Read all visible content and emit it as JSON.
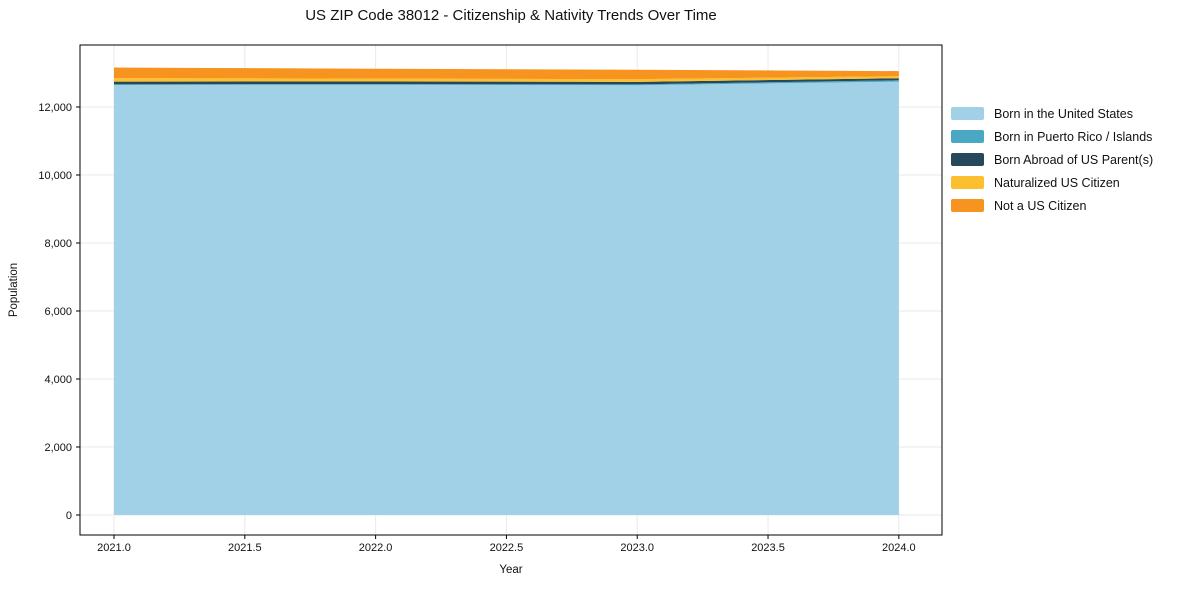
{
  "chart_data": {
    "type": "area",
    "stacked": true,
    "title": "US ZIP Code 38012 - Citizenship & Nativity Trends Over Time",
    "xlabel": "Year",
    "ylabel": "Population",
    "x": [
      2021,
      2022,
      2023,
      2024
    ],
    "series": [
      {
        "name": "Born in the United States",
        "color": "#a0d1e6",
        "values": [
          12650,
          12655,
          12640,
          12745
        ]
      },
      {
        "name": "Born in Puerto Rico / Islands",
        "color": "#4ba8c4",
        "values": [
          15,
          15,
          25,
          40
        ]
      },
      {
        "name": "Born Abroad of US Parent(s)",
        "color": "#26485c",
        "values": [
          80,
          80,
          75,
          60
        ]
      },
      {
        "name": "Naturalized US Citizen",
        "color": "#fcc02f",
        "values": [
          105,
          85,
          80,
          60
        ]
      },
      {
        "name": "Not a US Citizen",
        "color": "#f79420",
        "values": [
          310,
          290,
          275,
          150
        ]
      }
    ],
    "xlim": [
      2020.87,
      2024.165
    ],
    "ylim": [
      -588,
      13823
    ],
    "xticks": [
      2021.0,
      2021.5,
      2022.0,
      2022.5,
      2023.0,
      2023.5,
      2024.0
    ],
    "xtick_labels": [
      "2021.0",
      "2021.5",
      "2022.0",
      "2022.5",
      "2023.0",
      "2023.5",
      "2024.0"
    ],
    "yticks": [
      0,
      2000,
      4000,
      6000,
      8000,
      10000,
      12000
    ],
    "ytick_labels": [
      "0",
      "2,000",
      "4,000",
      "6,000",
      "8,000",
      "10,000",
      "12,000"
    ],
    "grid": true,
    "grid_color": "#eaeaea",
    "axis_color": "#000000",
    "legend_position": "right-outside"
  }
}
